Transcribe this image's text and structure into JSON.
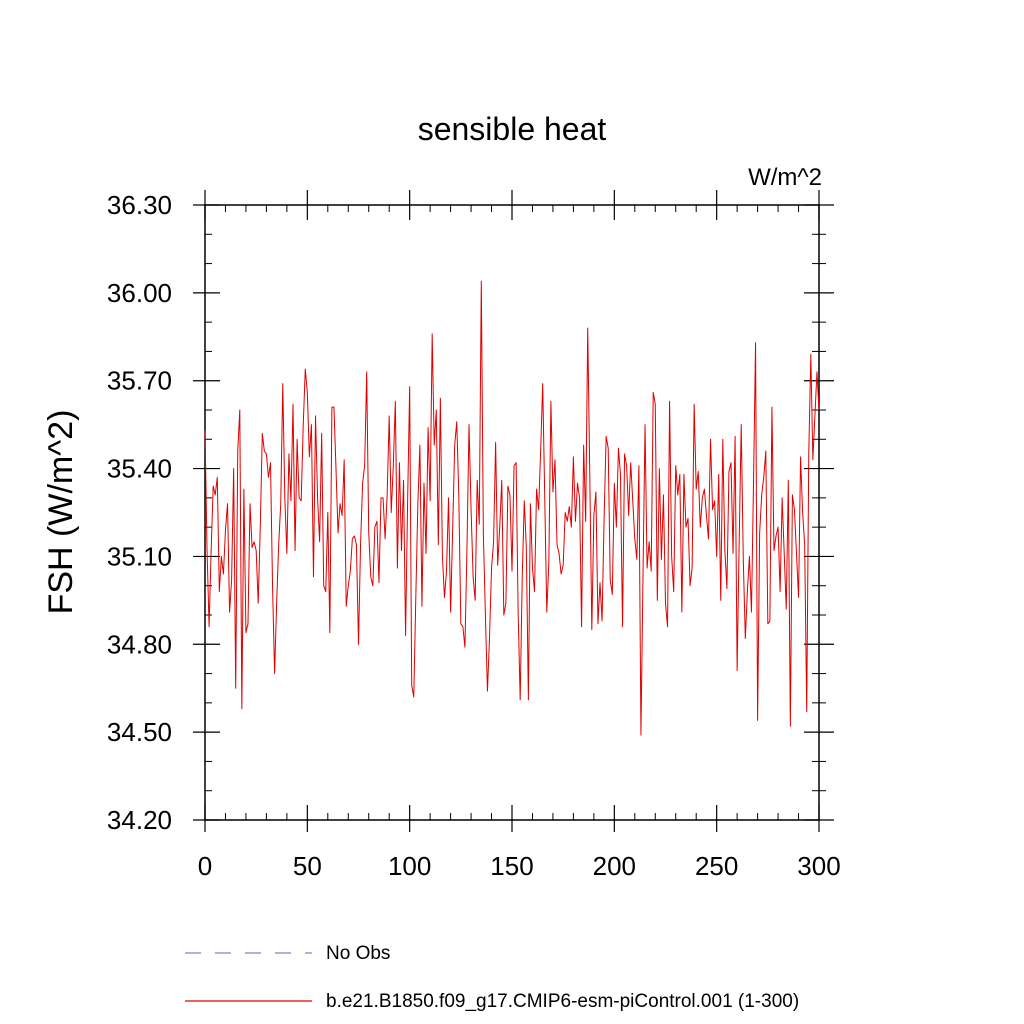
{
  "chart_data": {
    "type": "line",
    "title": "sensible heat",
    "units_label": "W/m^2",
    "ylabel": "FSH  (W/m^2)",
    "xlabel": "",
    "xlim": [
      0,
      300
    ],
    "ylim": [
      34.2,
      36.3
    ],
    "xticks": [
      0,
      50,
      100,
      150,
      200,
      250,
      300
    ],
    "xtick_labels": [
      "0",
      "50",
      "100",
      "150",
      "200",
      "250",
      "300"
    ],
    "yticks": [
      34.2,
      34.5,
      34.8,
      35.1,
      35.4,
      35.7,
      36.0,
      36.3
    ],
    "ytick_labels": [
      "34.20",
      "34.50",
      "34.80",
      "35.10",
      "35.40",
      "35.70",
      "36.00",
      "36.30"
    ],
    "grid": false,
    "legend_position": "bottom",
    "legend": [
      {
        "label": "No Obs",
        "color": "#8a7fd0",
        "style": "dashed"
      },
      {
        "label": "b.e21.B1850.f09_g17.CMIP6-esm-piControl.001 (1-300)",
        "color": "#e00000",
        "style": "solid"
      }
    ],
    "series": [
      {
        "color": "#e00000",
        "x_start": 0,
        "x_step": 1,
        "values": [
          35.53,
          35.12,
          34.86,
          35.12,
          35.34,
          35.31,
          35.37,
          34.98,
          35.1,
          35.04,
          35.19,
          35.28,
          34.91,
          35.02,
          35.4,
          34.65,
          35.46,
          35.6,
          34.58,
          35.33,
          34.84,
          34.87,
          35.28,
          35.13,
          35.15,
          35.12,
          34.94,
          35.2,
          35.52,
          35.46,
          35.45,
          35.37,
          35.42,
          35.0,
          34.7,
          34.94,
          35.14,
          35.28,
          35.69,
          35.3,
          35.11,
          35.45,
          35.29,
          35.62,
          35.12,
          35.5,
          35.3,
          35.29,
          35.55,
          35.74,
          35.66,
          35.44,
          35.55,
          35.03,
          35.58,
          35.3,
          35.15,
          35.52,
          35.0,
          34.98,
          35.25,
          34.84,
          35.61,
          35.61,
          35.4,
          35.18,
          35.28,
          35.24,
          35.43,
          34.93,
          35.0,
          35.05,
          35.16,
          35.17,
          35.14,
          34.8,
          35.14,
          35.35,
          35.41,
          35.73,
          35.18,
          35.03,
          35.0,
          35.2,
          35.22,
          35.01,
          35.3,
          35.3,
          35.16,
          35.31,
          35.58,
          35.25,
          35.41,
          35.63,
          35.06,
          35.42,
          35.12,
          35.36,
          34.83,
          35.29,
          35.68,
          34.66,
          34.62,
          34.96,
          35.28,
          35.48,
          34.93,
          35.35,
          35.11,
          35.54,
          35.29,
          35.86,
          35.48,
          35.6,
          35.14,
          35.64,
          35.1,
          34.96,
          35.05,
          35.3,
          34.91,
          35.19,
          35.48,
          35.56,
          35.31,
          34.87,
          34.86,
          34.79,
          35.13,
          35.55,
          35.26,
          35.03,
          34.95,
          35.36,
          35.21,
          36.04,
          35.18,
          34.9,
          34.64,
          34.82,
          35.06,
          35.15,
          35.49,
          35.07,
          35.2,
          35.36,
          34.9,
          34.94,
          35.34,
          35.31,
          35.05,
          35.41,
          35.42,
          34.91,
          34.61,
          35.03,
          35.29,
          35.13,
          34.61,
          35.28,
          35.06,
          34.98,
          35.33,
          35.26,
          35.46,
          35.69,
          35.3,
          34.91,
          35.08,
          35.63,
          35.32,
          35.43,
          35.14,
          35.11,
          35.04,
          35.07,
          35.25,
          35.22,
          35.27,
          35.2,
          35.44,
          35.22,
          35.35,
          35.3,
          34.86,
          35.48,
          35.22,
          35.88,
          35.38,
          34.85,
          35.24,
          35.32,
          34.87,
          35.01,
          34.88,
          35.23,
          35.51,
          35.47,
          35.02,
          34.97,
          35.35,
          35.2,
          35.47,
          35.38,
          34.86,
          35.45,
          35.41,
          35.24,
          35.42,
          35.29,
          35.16,
          35.09,
          35.41,
          34.49,
          35.03,
          35.55,
          35.06,
          35.15,
          35.05,
          35.66,
          35.62,
          34.95,
          35.4,
          35.09,
          35.31,
          34.94,
          34.86,
          35.63,
          35.1,
          34.98,
          35.41,
          35.31,
          35.38,
          34.91,
          35.38,
          35.2,
          35.23,
          35.0,
          35.06,
          35.62,
          35.33,
          35.39,
          35.2,
          35.3,
          35.33,
          35.24,
          35.16,
          35.5,
          35.26,
          35.29,
          35.1,
          35.38,
          34.95,
          35.5,
          35.12,
          34.99,
          35.39,
          35.42,
          35.11,
          35.51,
          34.71,
          35.15,
          35.55,
          35.09,
          34.82,
          34.98,
          35.1,
          34.91,
          35.35,
          35.83,
          34.54,
          35.18,
          35.31,
          35.37,
          35.46,
          34.87,
          34.88,
          35.61,
          35.12,
          35.17,
          35.2,
          34.98,
          35.3,
          35.11,
          34.92,
          35.36,
          34.52,
          35.31,
          35.26,
          35.11,
          34.96,
          35.44,
          35.25,
          35.14,
          34.57,
          35.45,
          35.79,
          35.43,
          35.58,
          35.73,
          35.6
        ]
      }
    ]
  }
}
